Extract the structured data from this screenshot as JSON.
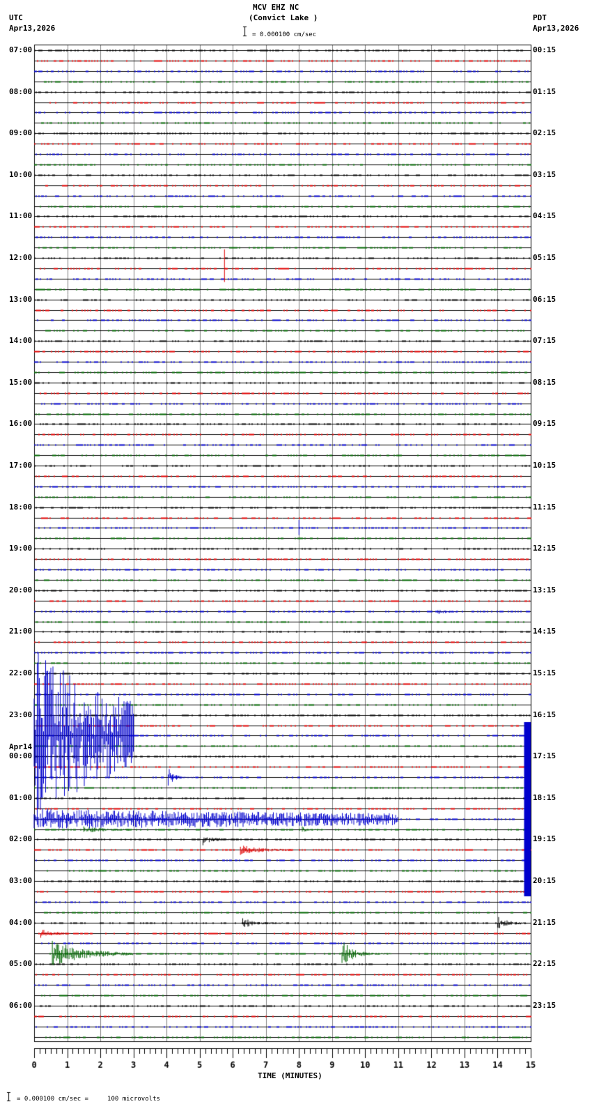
{
  "header": {
    "station": "MCV EHZ NC",
    "location": "(Convict Lake )",
    "scale_label": "= 0.000100 cm/sec",
    "left_tz": "UTC",
    "left_date": "Apr13,2026",
    "right_tz": "PDT",
    "right_date": "Apr13,2026"
  },
  "footer": {
    "scale_note": "= 0.000100 cm/sec =     100 microvolts",
    "xaxis_title": "TIME (MINUTES)"
  },
  "chart_data": {
    "type": "seismogram",
    "title": "MCV EHZ NC (Convict Lake )",
    "xlabel": "TIME (MINUTES)",
    "xlim": [
      0,
      15
    ],
    "x_ticks": [
      0,
      1,
      2,
      3,
      4,
      5,
      6,
      7,
      8,
      9,
      10,
      11,
      12,
      13,
      14,
      15
    ],
    "grid": true,
    "traces_per_hour": 4,
    "trace_colors": [
      "#000000",
      "#e00000",
      "#0000cc",
      "#006600"
    ],
    "date_change_label": "Apr14",
    "left_labels": [
      "07:00",
      "08:00",
      "09:00",
      "10:00",
      "11:00",
      "12:00",
      "13:00",
      "14:00",
      "15:00",
      "16:00",
      "17:00",
      "18:00",
      "19:00",
      "20:00",
      "21:00",
      "22:00",
      "23:00",
      "00:00",
      "01:00",
      "02:00",
      "03:00",
      "04:00",
      "05:00",
      "06:00"
    ],
    "right_labels": [
      "00:15",
      "01:15",
      "02:15",
      "03:15",
      "04:15",
      "05:15",
      "06:15",
      "07:15",
      "08:15",
      "09:15",
      "10:15",
      "11:15",
      "12:15",
      "13:15",
      "14:15",
      "15:15",
      "16:15",
      "17:15",
      "18:15",
      "19:15",
      "20:15",
      "21:15",
      "22:15",
      "23:15"
    ],
    "events": [
      {
        "trace": 21,
        "start_min": 5.75,
        "end_min": 5.85,
        "amp": 30,
        "decay": 0.2,
        "note": "red spike ~12:15"
      },
      {
        "trace": 46,
        "start_min": 8.0,
        "end_min": 8.15,
        "amp": 18,
        "decay": 0.1,
        "note": "blue spike ~18:30"
      },
      {
        "trace": 54,
        "start_min": 12.2,
        "end_min": 12.8,
        "amp": 3,
        "decay": 1,
        "note": "blue small ~20:30"
      },
      {
        "trace": 60,
        "start_min": 0.35,
        "end_min": 0.6,
        "amp": 4,
        "decay": 0.3,
        "note": "black ~22:00"
      },
      {
        "trace": 66,
        "start_min": 0,
        "end_min": 3.0,
        "amp": 130,
        "decay": 3.0,
        "note": "main quake blue ~23:30"
      },
      {
        "trace": 66,
        "start_min": 14.8,
        "end_min": 15,
        "amp": 130,
        "decay": 0,
        "note": "red saturated block"
      },
      {
        "trace": 70,
        "start_min": 4.05,
        "end_min": 4.9,
        "amp": 14,
        "decay": 0.5,
        "note": "blue aftershock ~00:30"
      },
      {
        "trace": 74,
        "start_min": 0,
        "end_min": 11.0,
        "amp": 14,
        "decay": 5,
        "note": "blue coda ~01:30"
      },
      {
        "trace": 75,
        "start_min": 1.5,
        "end_min": 3.0,
        "amp": 4,
        "decay": 1,
        "note": "green ~01:45"
      },
      {
        "trace": 75,
        "start_min": 8.1,
        "end_min": 8.8,
        "amp": 5,
        "decay": 0.4,
        "note": "green ~01:45 late"
      },
      {
        "trace": 76,
        "start_min": 5.1,
        "end_min": 6.2,
        "amp": 8,
        "decay": 0.6,
        "note": "black ~02:00"
      },
      {
        "trace": 77,
        "start_min": 6.2,
        "end_min": 7.8,
        "amp": 7,
        "decay": 1,
        "note": "red ~02:15"
      },
      {
        "trace": 84,
        "start_min": 6.3,
        "end_min": 7.5,
        "amp": 8,
        "decay": 0.6,
        "note": "black ~04:00"
      },
      {
        "trace": 84,
        "start_min": 14.0,
        "end_min": 15.0,
        "amp": 9,
        "decay": 0.8,
        "note": "black ~04:00 late"
      },
      {
        "trace": 85,
        "start_min": 0.2,
        "end_min": 1.1,
        "amp": 6,
        "decay": 1,
        "note": "red ~04:15"
      },
      {
        "trace": 87,
        "start_min": 0.55,
        "end_min": 3.0,
        "amp": 20,
        "decay": 1.0,
        "note": "green ~04:45"
      },
      {
        "trace": 87,
        "start_min": 9.3,
        "end_min": 10.8,
        "amp": 20,
        "decay": 0.6,
        "note": "green ~04:45 second"
      }
    ]
  }
}
